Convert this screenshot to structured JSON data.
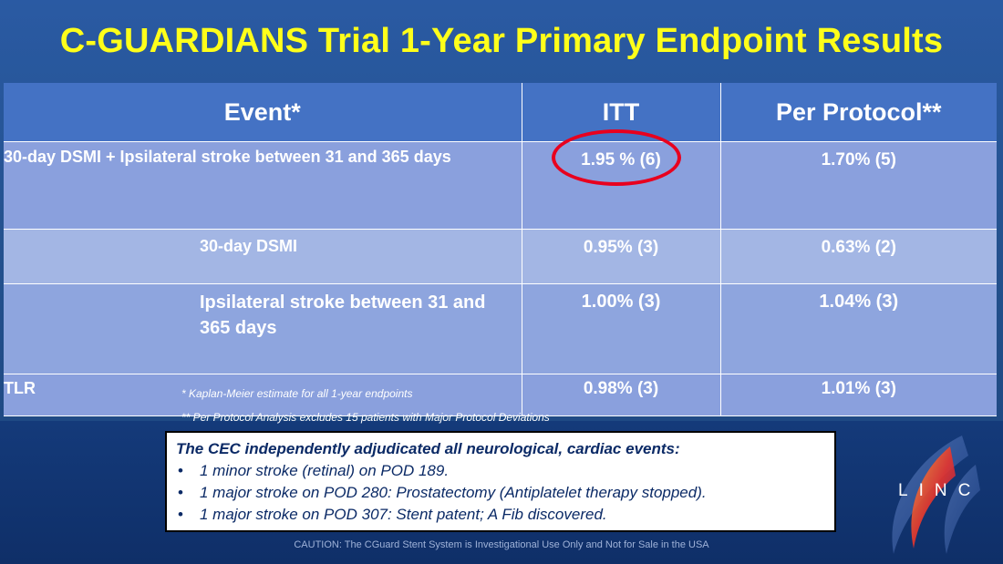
{
  "slide": {
    "title": "C-GUARDIANS Trial 1-Year Primary Endpoint Results"
  },
  "table": {
    "headers": [
      "Event*",
      "ITT",
      "Per Protocol**"
    ],
    "rows": [
      {
        "event": "30-day DSMI + Ipsilateral stroke between 31 and 365 days",
        "itt": "1.95 % (6)",
        "pp": "1.70% (5)"
      },
      {
        "event": "30-day DSMI",
        "itt": "0.95% (3)",
        "pp": "0.63% (2)"
      },
      {
        "event": "Ipsilateral stroke between 31 and 365 days",
        "itt": "1.00% (3)",
        "pp": "1.04% (3)"
      },
      {
        "event": "TLR",
        "itt": "0.98% (3)",
        "pp": "1.01% (3)"
      }
    ],
    "highlight_color": "#e8001e"
  },
  "footnotes": [
    "* Kaplan-Meier estimate for all 1-year endpoints",
    "** Per Protocol Analysis excludes 15 patients with Major Protocol Deviations"
  ],
  "cec_box": {
    "heading": "The CEC independently adjudicated all neurological, cardiac events:",
    "bullet_glyph": "•",
    "items": [
      "1 minor stroke (retinal) on POD 189.",
      "1 major  stroke on POD 280: Prostatectomy (Antiplatelet therapy stopped).",
      "1 major stroke on POD 307: Stent patent; A Fib discovered."
    ]
  },
  "caution": "CAUTION: The CGuard Stent System is Investigational Use Only and Not for Sale in the USA",
  "logo": {
    "text": "LINC",
    "icon": "linc-swoosh-logo"
  },
  "colors": {
    "title": "#ffff1a",
    "header_bg": "#4472c4",
    "row_bg": "#8aa0dd",
    "row_alt_bg": "#a3b6e4",
    "background": "#1b3f7c"
  }
}
